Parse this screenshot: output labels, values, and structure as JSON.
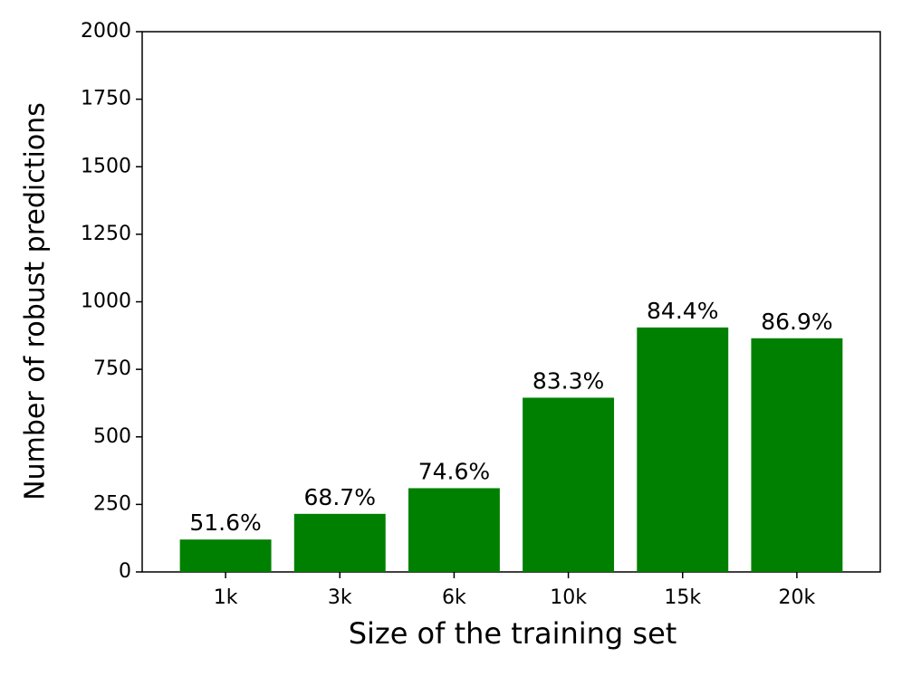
{
  "chart_data": {
    "type": "bar",
    "xlabel": "Size of the training set",
    "ylabel": "Number of robust predictions",
    "ylabel_color": "#0000ff",
    "categories": [
      "1k",
      "3k",
      "6k",
      "10k",
      "15k",
      "20k"
    ],
    "values": [
      120,
      215,
      310,
      645,
      905,
      865
    ],
    "annotations": [
      "51.6%",
      "68.7%",
      "74.6%",
      "83.3%",
      "84.4%",
      "86.9%"
    ],
    "color": "#008000",
    "ylim": [
      0,
      2000
    ],
    "yticks": [
      0,
      250,
      500,
      750,
      1000,
      1250,
      1500,
      1750,
      2000
    ],
    "grid": false
  }
}
